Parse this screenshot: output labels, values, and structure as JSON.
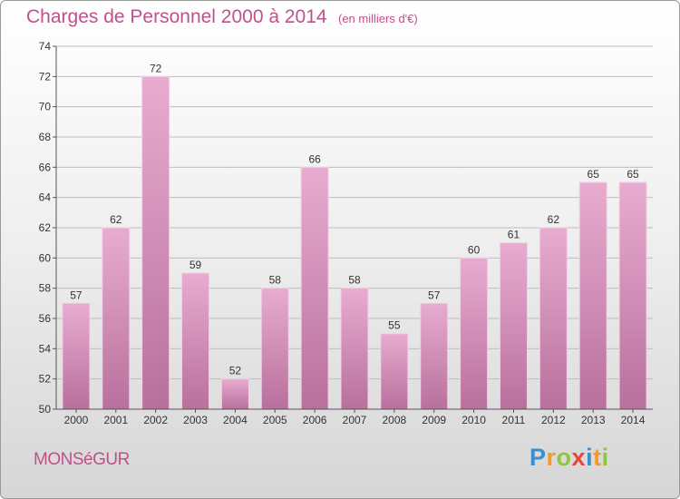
{
  "header": {
    "title": "Charges de Personnel 2000 à 2014",
    "subtitle": "(en milliers d'€)"
  },
  "footer": {
    "commune": "MONSéGUR",
    "logo_text": "Proxiti",
    "logo_letters": [
      {
        "ch": "P",
        "color": "#3c8fd0"
      },
      {
        "ch": "r",
        "color": "#f39a24"
      },
      {
        "ch": "o",
        "color": "#8dc63f"
      },
      {
        "ch": "x",
        "color": "#e8443a"
      },
      {
        "ch": "i",
        "color": "#3c8fd0"
      },
      {
        "ch": "t",
        "color": "#f39a24"
      },
      {
        "ch": "i",
        "color": "#8dc63f"
      }
    ]
  },
  "colors": {
    "bar_top": "#e8acd0",
    "bar_bottom": "#b8709c",
    "bar_edge": "#f2cfe3",
    "grid": "#bdbdbd",
    "axis": "#555555",
    "title": "#c0508a"
  },
  "chart_data": {
    "type": "bar",
    "title": "Charges de Personnel 2000 à 2014",
    "subtitle": "(en milliers d'€)",
    "categories": [
      "2000",
      "2001",
      "2002",
      "2003",
      "2004",
      "2005",
      "2006",
      "2007",
      "2008",
      "2009",
      "2010",
      "2011",
      "2012",
      "2013",
      "2014"
    ],
    "values": [
      57,
      62,
      72,
      59,
      52,
      58,
      66,
      58,
      55,
      57,
      60,
      61,
      62,
      65,
      65
    ],
    "ylim": [
      50,
      74
    ],
    "yticks": [
      50,
      52,
      54,
      56,
      58,
      60,
      62,
      64,
      66,
      68,
      70,
      72,
      74
    ],
    "grid": true,
    "legend": "none",
    "xlabel": "",
    "ylabel": ""
  }
}
